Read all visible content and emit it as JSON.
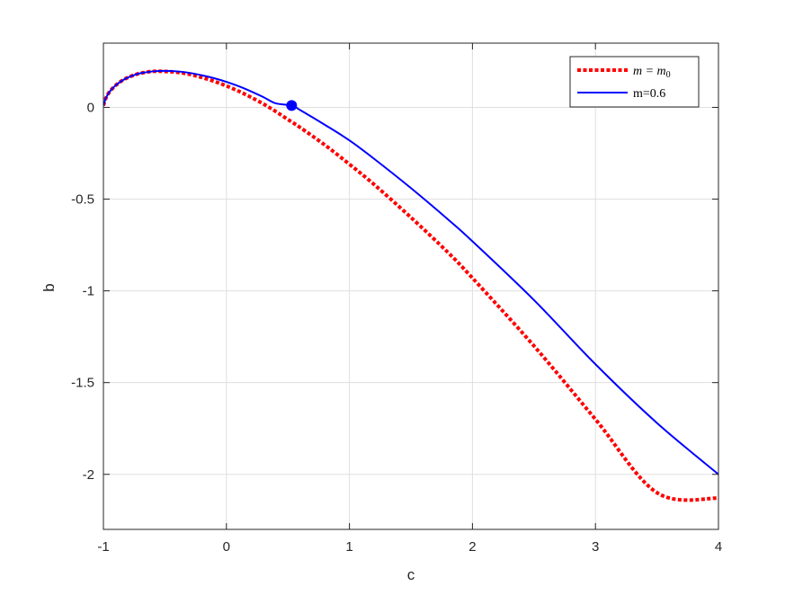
{
  "chart_data": {
    "type": "line",
    "title": "",
    "xlabel": "c",
    "ylabel": "b",
    "xlim": [
      -1,
      4
    ],
    "ylim": [
      -2.3,
      0.35
    ],
    "xticks": [
      -1,
      0,
      1,
      2,
      3,
      4
    ],
    "xtick_labels": [
      "-1",
      "0",
      "1",
      "2",
      "3",
      "4"
    ],
    "yticks": [
      -2,
      -1.5,
      -1,
      -0.5,
      0
    ],
    "ytick_labels": [
      "-2",
      "-1.5",
      "-1",
      "-0.5",
      "0"
    ],
    "grid": true,
    "legend_position": "top-right",
    "series": [
      {
        "name": "m = m0",
        "legend_label": {
          "main": "m = m",
          "sub": "0"
        },
        "color": "#ff0000",
        "style": "dotted",
        "x": [
          -1.0,
          -0.98,
          -0.95,
          -0.9,
          -0.85,
          -0.8,
          -0.75,
          -0.7,
          -0.6,
          -0.5,
          -0.4,
          -0.3,
          -0.2,
          -0.1,
          0.0,
          0.1,
          0.2,
          0.3,
          0.4,
          0.5,
          0.6,
          0.8,
          1.0,
          1.2,
          1.5,
          1.8,
          2.0,
          2.5,
          3.0,
          3.5,
          4.0
        ],
        "y": [
          0.01,
          0.05,
          0.085,
          0.12,
          0.145,
          0.163,
          0.176,
          0.186,
          0.196,
          0.196,
          0.191,
          0.18,
          0.163,
          0.142,
          0.117,
          0.088,
          0.055,
          0.019,
          -0.022,
          -0.066,
          -0.11,
          -0.205,
          -0.31,
          -0.42,
          -0.6,
          -0.79,
          -0.93,
          -1.3,
          -1.7,
          -2.1,
          -2.13
        ]
      },
      {
        "name": "m=0.6",
        "legend_label": {
          "main": "m=0.6",
          "sub": ""
        },
        "color": "#0000ff",
        "style": "solid",
        "x": [
          -1.0,
          -0.98,
          -0.95,
          -0.9,
          -0.85,
          -0.8,
          -0.75,
          -0.7,
          -0.6,
          -0.5,
          -0.4,
          -0.3,
          -0.2,
          -0.1,
          0.0,
          0.1,
          0.2,
          0.3,
          0.4,
          0.53,
          0.6,
          0.8,
          1.0,
          1.2,
          1.5,
          1.8,
          2.0,
          2.5,
          3.0,
          3.5,
          4.0
        ],
        "y": [
          0.01,
          0.05,
          0.085,
          0.12,
          0.145,
          0.163,
          0.176,
          0.186,
          0.196,
          0.199,
          0.196,
          0.188,
          0.175,
          0.159,
          0.139,
          0.115,
          0.087,
          0.056,
          0.022,
          0.01,
          -0.015,
          -0.095,
          -0.18,
          -0.28,
          -0.44,
          -0.61,
          -0.73,
          -1.05,
          -1.4,
          -1.72,
          -2.0
        ]
      }
    ],
    "marker": {
      "x": 0.53,
      "y": 0.01,
      "color": "#0000ff"
    }
  }
}
